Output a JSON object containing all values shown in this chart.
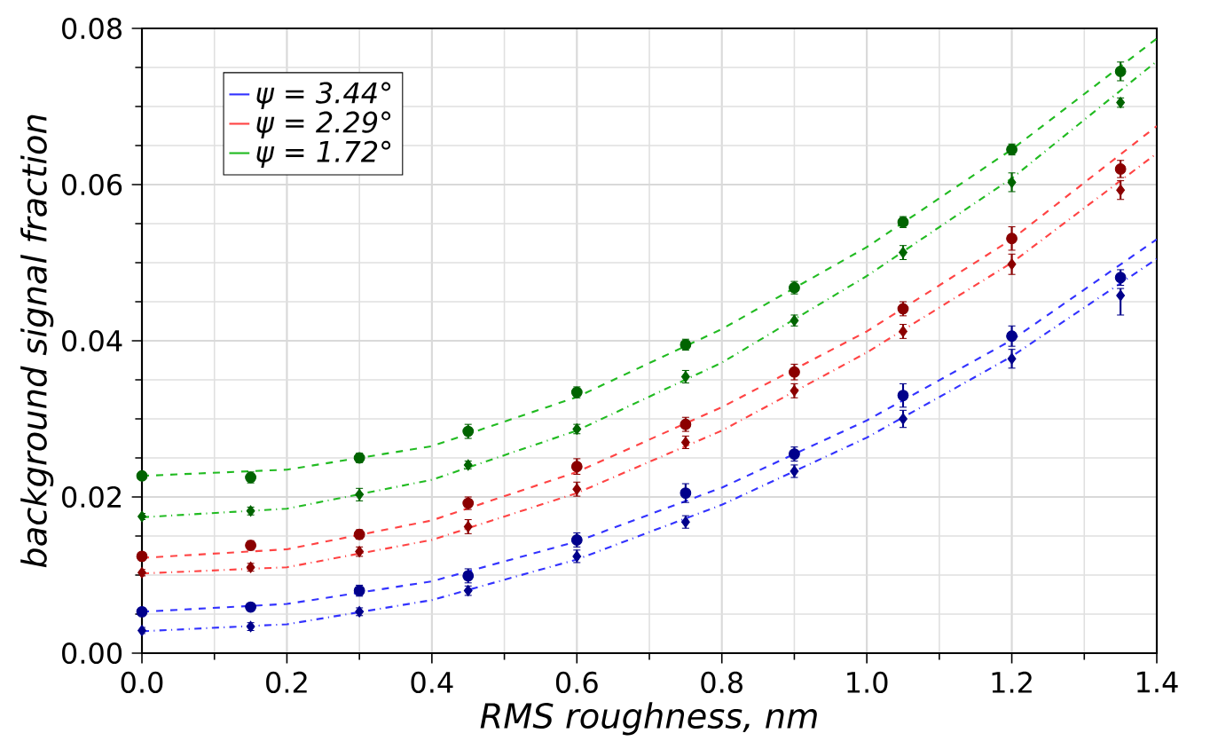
{
  "chart_data": {
    "type": "scatter",
    "xlabel": "RMS roughness, nm",
    "ylabel": "background signal fraction",
    "xlim": [
      0,
      1.4
    ],
    "ylim": [
      0,
      0.08
    ],
    "xticks": [
      {
        "value": 0,
        "label": "0.0"
      },
      {
        "value": 0.2,
        "label": "0.2"
      },
      {
        "value": 0.4,
        "label": "0.4"
      },
      {
        "value": 0.6,
        "label": "0.6"
      },
      {
        "value": 0.8,
        "label": "0.8"
      },
      {
        "value": 1.0,
        "label": "1.0"
      },
      {
        "value": 1.2,
        "label": "1.2"
      },
      {
        "value": 1.4,
        "label": "1.4"
      }
    ],
    "yticks": [
      {
        "value": 0,
        "label": "0.00"
      },
      {
        "value": 0.02,
        "label": "0.02"
      },
      {
        "value": 0.04,
        "label": "0.04"
      },
      {
        "value": 0.06,
        "label": "0.06"
      },
      {
        "value": 0.08,
        "label": "0.08"
      }
    ],
    "grid": true,
    "legend": "top left",
    "x": [
      0,
      0.15,
      0.3,
      0.45,
      0.6,
      0.75,
      0.9,
      1.05,
      1.2,
      1.35
    ],
    "series": [
      {
        "type": "line",
        "name": "ψ = 3.44°",
        "color": "#3333ff",
        "marker": "none",
        "line_style": "dashed",
        "x": [
          0,
          0.2,
          0.4,
          0.6,
          0.8,
          1.0,
          1.2,
          1.4
        ],
        "values": [
          0.0053,
          0.0063,
          0.0092,
          0.0143,
          0.0212,
          0.0298,
          0.0401,
          0.053
        ]
      },
      {
        "type": "line",
        "name": "ψ = 2.29°",
        "color": "#ff4444",
        "marker": "none",
        "line_style": "dashed",
        "x": [
          0,
          0.2,
          0.4,
          0.6,
          0.8,
          1.0,
          1.2,
          1.4
        ],
        "values": [
          0.0122,
          0.0133,
          0.017,
          0.0232,
          0.0315,
          0.0412,
          0.053,
          0.0675
        ]
      },
      {
        "type": "line",
        "name": "ψ = 1.72°",
        "color": "#22bb22",
        "marker": "none",
        "line_style": "dashed",
        "x": [
          0,
          0.2,
          0.4,
          0.6,
          0.8,
          1.0,
          1.2,
          1.4
        ],
        "values": [
          0.0227,
          0.0235,
          0.0265,
          0.0328,
          0.0415,
          0.052,
          0.0645,
          0.0787
        ]
      },
      {
        "type": "line",
        "color": "#3333ff",
        "marker": "none",
        "line_style": "dotted",
        "x": [
          0,
          0.2,
          0.4,
          0.6,
          0.8,
          1.0,
          1.2,
          1.4
        ],
        "values": [
          0.0028,
          0.0037,
          0.0068,
          0.012,
          0.019,
          0.0276,
          0.038,
          0.0505
        ]
      },
      {
        "type": "line",
        "color": "#ff4444",
        "marker": "none",
        "line_style": "dotted",
        "x": [
          0,
          0.2,
          0.4,
          0.6,
          0.8,
          1.0,
          1.2,
          1.4
        ],
        "values": [
          0.0102,
          0.011,
          0.0145,
          0.0205,
          0.0285,
          0.0385,
          0.05,
          0.064
        ]
      },
      {
        "type": "line",
        "color": "#22bb22",
        "marker": "none",
        "line_style": "dotted",
        "x": [
          0,
          0.2,
          0.4,
          0.6,
          0.8,
          1.0,
          1.2,
          1.4
        ],
        "values": [
          0.0174,
          0.0185,
          0.0222,
          0.0285,
          0.0372,
          0.0483,
          0.0608,
          0.0758
        ]
      },
      {
        "color": "#00008b",
        "marker": "circle",
        "values": [
          0.0053,
          0.0059,
          0.008,
          0.0099,
          0.0145,
          0.0205,
          0.0255,
          0.033,
          0.0406,
          0.0481
        ],
        "errors": [
          0.0005,
          0.0005,
          0.0007,
          0.0009,
          0.0009,
          0.0012,
          0.0009,
          0.0015,
          0.0013,
          0.001
        ]
      },
      {
        "color": "#00008b",
        "marker": "diamond",
        "values": [
          0.0029,
          0.0034,
          0.0053,
          0.008,
          0.0124,
          0.0168,
          0.0233,
          0.03,
          0.0377,
          0.0458
        ],
        "errors": [
          0.0004,
          0.0005,
          0.0005,
          0.0006,
          0.0008,
          0.0008,
          0.0008,
          0.0011,
          0.0012,
          [
            0.0433,
            0.0467
          ]
        ]
      },
      {
        "color": "#8b0000",
        "marker": "circle",
        "values": [
          0.0124,
          0.0138,
          0.0152,
          0.0192,
          0.0239,
          0.0293,
          0.036,
          0.0441,
          0.0531,
          0.062
        ],
        "errors": [
          0.0005,
          0.0006,
          0.0006,
          0.0008,
          0.001,
          0.0009,
          0.001,
          0.0009,
          0.0015,
          0.0011
        ]
      },
      {
        "color": "#8b0000",
        "marker": "diamond",
        "values": [
          0.0103,
          0.011,
          0.013,
          0.0162,
          0.021,
          0.027,
          0.0336,
          0.0412,
          0.0498,
          0.0593
        ],
        "errors": [
          0.0004,
          0.0005,
          0.0006,
          0.0009,
          0.0009,
          0.0008,
          0.0009,
          0.0009,
          0.0013,
          0.0012
        ]
      },
      {
        "color": "#006400",
        "marker": "circle",
        "values": [
          0.0227,
          0.0225,
          0.025,
          0.0284,
          0.0334,
          0.0395,
          0.0468,
          0.0552,
          0.0645,
          0.0745
        ],
        "errors": [
          0.0005,
          0.0007,
          0.0006,
          0.0009,
          0.0007,
          0.0007,
          0.0008,
          0.0007,
          0.0007,
          0.0012
        ]
      },
      {
        "color": "#006400",
        "marker": "diamond",
        "values": [
          0.0175,
          0.0182,
          0.0203,
          0.0241,
          0.0287,
          0.0354,
          0.0426,
          0.0513,
          0.0603,
          0.0705
        ],
        "errors": [
          0.0004,
          0.0005,
          0.0008,
          0.0005,
          0.0006,
          0.0008,
          0.0007,
          0.0009,
          0.0012,
          0.0006
        ]
      }
    ]
  }
}
